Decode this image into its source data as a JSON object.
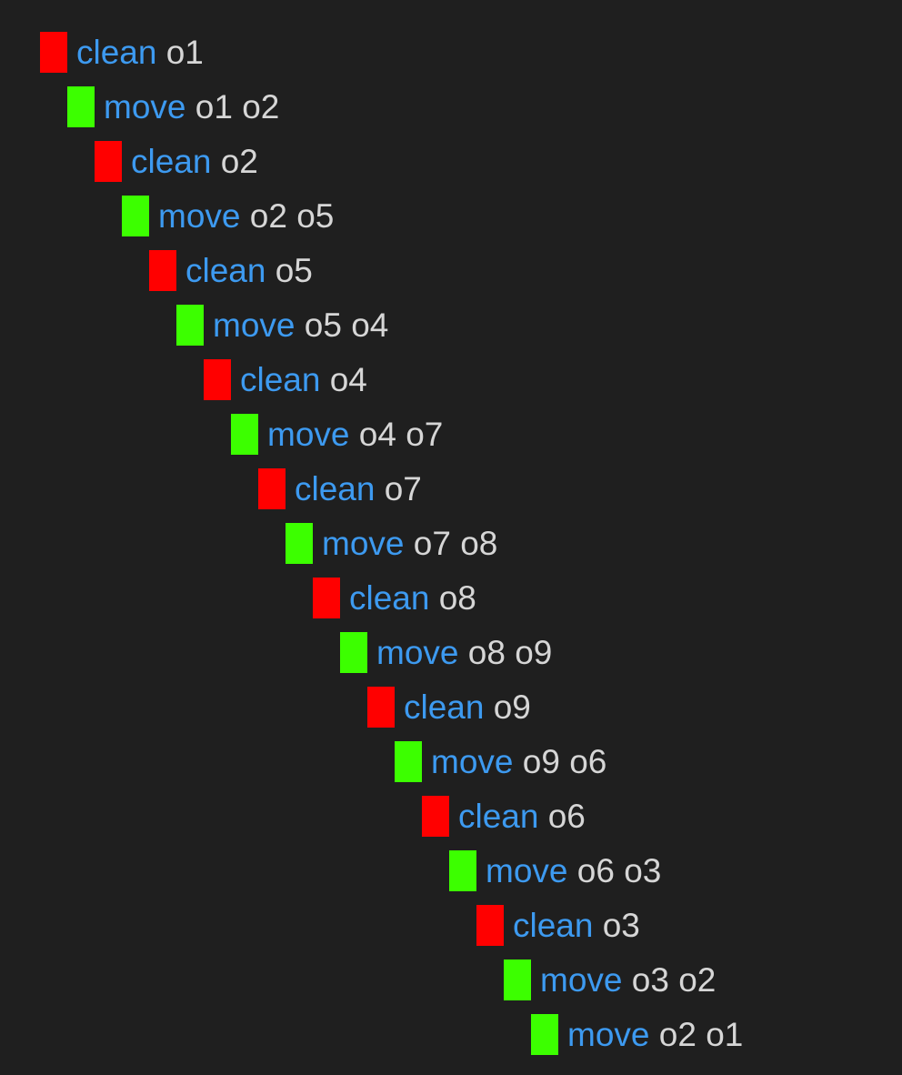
{
  "colors": {
    "background": "#1f1f1f",
    "action_text": "#3d9af0",
    "argument_text": "#d6d6d6",
    "clean_marker": "#ff0000",
    "move_marker": "#3cff00"
  },
  "steps": [
    {
      "action": "clean",
      "args": "o1",
      "marker": "red"
    },
    {
      "action": "move",
      "args": "o1 o2",
      "marker": "green"
    },
    {
      "action": "clean",
      "args": "o2",
      "marker": "red"
    },
    {
      "action": "move",
      "args": "o2 o5",
      "marker": "green"
    },
    {
      "action": "clean",
      "args": "o5",
      "marker": "red"
    },
    {
      "action": "move",
      "args": "o5 o4",
      "marker": "green"
    },
    {
      "action": "clean",
      "args": "o4",
      "marker": "red"
    },
    {
      "action": "move",
      "args": "o4 o7",
      "marker": "green"
    },
    {
      "action": "clean",
      "args": "o7",
      "marker": "red"
    },
    {
      "action": "move",
      "args": "o7 o8",
      "marker": "green"
    },
    {
      "action": "clean",
      "args": "o8",
      "marker": "red"
    },
    {
      "action": "move",
      "args": "o8 o9",
      "marker": "green"
    },
    {
      "action": "clean",
      "args": "o9",
      "marker": "red"
    },
    {
      "action": "move",
      "args": "o9 o6",
      "marker": "green"
    },
    {
      "action": "clean",
      "args": "o6",
      "marker": "red"
    },
    {
      "action": "move",
      "args": "o6 o3",
      "marker": "green"
    },
    {
      "action": "clean",
      "args": "o3",
      "marker": "red"
    },
    {
      "action": "move",
      "args": "o3 o2",
      "marker": "green"
    },
    {
      "action": "move",
      "args": "o2 o1",
      "marker": "green"
    }
  ]
}
